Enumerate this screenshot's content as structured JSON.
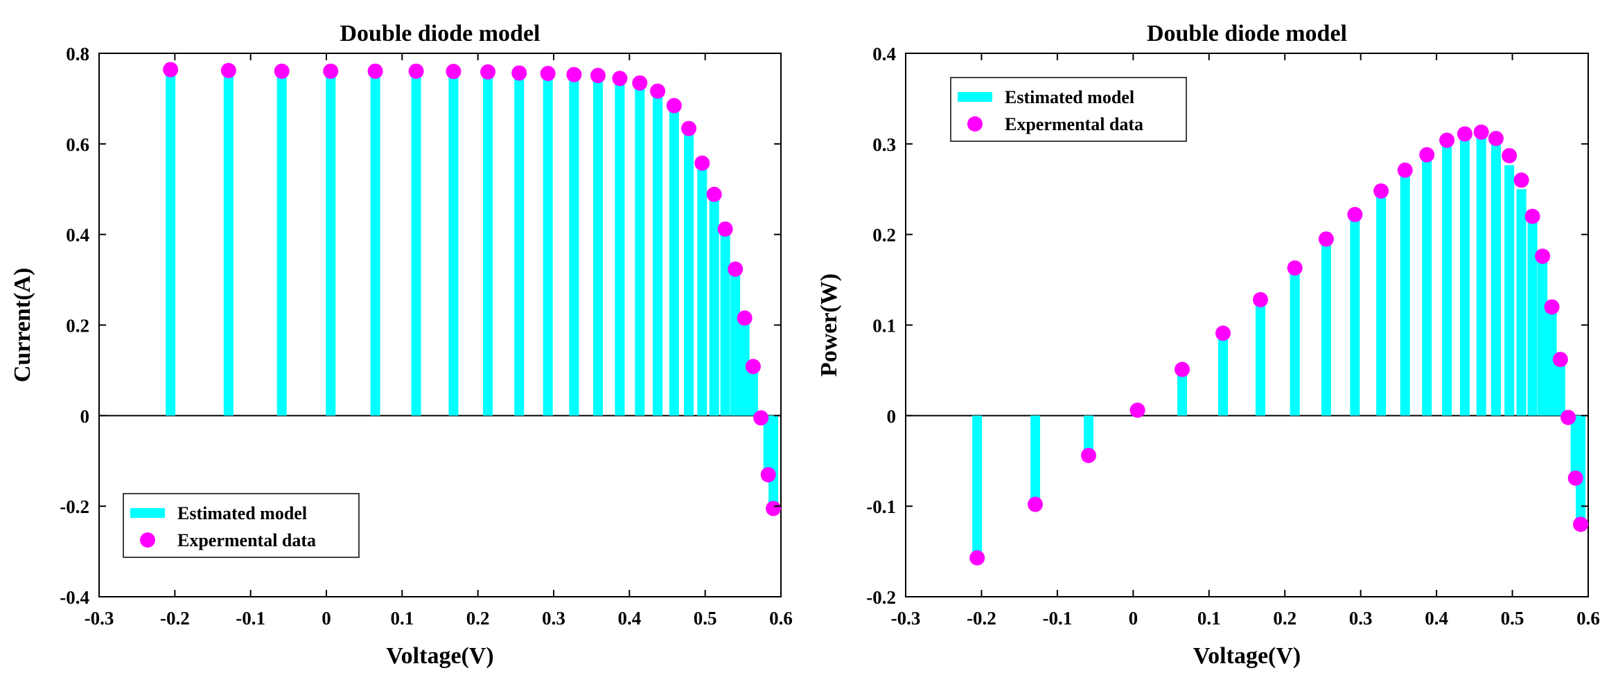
{
  "colors": {
    "stem": "#00ffff",
    "marker": "#ff00ff",
    "axis": "#000000"
  },
  "legend_labels": {
    "stem": "Estimated model",
    "marker": "Expermental data"
  },
  "chart_data": [
    {
      "type": "stem",
      "title": "Double diode model",
      "xlabel": "Voltage(V)",
      "ylabel": "Current(A)",
      "xlim": [
        -0.3,
        0.6
      ],
      "ylim": [
        -0.4,
        0.8
      ],
      "xticks": [
        -0.3,
        -0.2,
        -0.1,
        0,
        0.1,
        0.2,
        0.3,
        0.4,
        0.5,
        0.6
      ],
      "xtick_labels": [
        "-0.3",
        "-0.2",
        "-0.1",
        "0",
        "0.1",
        "0.2",
        "0.3",
        "0.4",
        "0.5",
        "0.6"
      ],
      "yticks": [
        -0.4,
        -0.2,
        0,
        0.2,
        0.4,
        0.6,
        0.8
      ],
      "ytick_labels": [
        "-0.4",
        "-0.2",
        "0",
        "0.2",
        "0.4",
        "0.6",
        "0.8"
      ],
      "legend_position": "bottom-left",
      "series": [
        {
          "name": "Estimated model",
          "kind": "stem",
          "x": [
            -0.2057,
            -0.1291,
            -0.0588,
            0.0057,
            0.0646,
            0.1185,
            0.1678,
            0.2132,
            0.2545,
            0.2924,
            0.3269,
            0.3585,
            0.3873,
            0.4137,
            0.4373,
            0.459,
            0.4784,
            0.496,
            0.5119,
            0.5265,
            0.5398,
            0.5521,
            0.5633,
            0.5736,
            0.5833,
            0.59
          ],
          "y": [
            0.764,
            0.762,
            0.7605,
            0.7605,
            0.7605,
            0.7605,
            0.76,
            0.759,
            0.7565,
            0.7555,
            0.753,
            0.751,
            0.7445,
            0.7345,
            0.7165,
            0.6845,
            0.634,
            0.5575,
            0.4885,
            0.412,
            0.3235,
            0.2155,
            0.1085,
            -0.005,
            -0.1305,
            -0.205
          ]
        },
        {
          "name": "Expermental data",
          "kind": "marker",
          "x": [
            -0.2057,
            -0.1291,
            -0.0588,
            0.0057,
            0.0646,
            0.1185,
            0.1678,
            0.2132,
            0.2545,
            0.2924,
            0.3269,
            0.3585,
            0.3873,
            0.4137,
            0.4373,
            0.459,
            0.4784,
            0.496,
            0.5119,
            0.5265,
            0.5398,
            0.5521,
            0.5633,
            0.5736,
            0.5833,
            0.59
          ],
          "y": [
            0.764,
            0.762,
            0.7605,
            0.7605,
            0.7605,
            0.7605,
            0.76,
            0.759,
            0.7565,
            0.7555,
            0.753,
            0.751,
            0.7445,
            0.7345,
            0.7165,
            0.6845,
            0.634,
            0.5575,
            0.4885,
            0.412,
            0.3235,
            0.2155,
            0.1085,
            -0.005,
            -0.1305,
            -0.205
          ]
        }
      ]
    },
    {
      "type": "stem",
      "title": "Double diode model",
      "xlabel": "Voltage(V)",
      "ylabel": "Power(W)",
      "xlim": [
        -0.3,
        0.6
      ],
      "ylim": [
        -0.2,
        0.4
      ],
      "xticks": [
        -0.3,
        -0.2,
        -0.1,
        0,
        0.1,
        0.2,
        0.3,
        0.4,
        0.5,
        0.6
      ],
      "xtick_labels": [
        "-0.3",
        "-0.2",
        "-0.1",
        "0",
        "0.1",
        "0.2",
        "0.3",
        "0.4",
        "0.5",
        "0.6"
      ],
      "yticks": [
        -0.2,
        -0.1,
        0,
        0.1,
        0.2,
        0.3,
        0.4
      ],
      "ytick_labels": [
        "-0.2",
        "-0.1",
        "0",
        "0.1",
        "0.2",
        "0.3",
        "0.4"
      ],
      "legend_position": "top-left",
      "series": [
        {
          "name": "Estimated model",
          "kind": "stem",
          "x": [
            -0.2057,
            -0.1291,
            -0.0588,
            0.0057,
            0.0646,
            0.1185,
            0.1678,
            0.2132,
            0.2545,
            0.2924,
            0.3269,
            0.3585,
            0.3873,
            0.4137,
            0.4373,
            0.459,
            0.4784,
            0.496,
            0.5119,
            0.5265,
            0.5398,
            0.5521,
            0.5633,
            0.5736,
            0.5833,
            0.59
          ],
          "y": [
            -0.157,
            -0.098,
            -0.045,
            0.004,
            0.049,
            0.09,
            0.1275,
            0.162,
            0.1925,
            0.221,
            0.246,
            0.2695,
            0.2885,
            0.304,
            0.3135,
            0.314,
            0.3035,
            0.2765,
            0.25,
            0.217,
            0.1745,
            0.119,
            0.061,
            -0.003,
            -0.0755,
            -0.121
          ]
        },
        {
          "name": "Expermental data",
          "kind": "marker",
          "x": [
            -0.2057,
            -0.1291,
            -0.0588,
            0.0057,
            0.0646,
            0.1185,
            0.1678,
            0.2132,
            0.2545,
            0.2924,
            0.3269,
            0.3585,
            0.3873,
            0.4137,
            0.4373,
            0.459,
            0.4784,
            0.496,
            0.5119,
            0.5265,
            0.5398,
            0.5521,
            0.5633,
            0.5736,
            0.5833,
            0.59
          ],
          "y": [
            -0.157,
            -0.098,
            -0.044,
            0.006,
            0.051,
            0.091,
            0.128,
            0.163,
            0.195,
            0.222,
            0.248,
            0.271,
            0.288,
            0.304,
            0.311,
            0.313,
            0.306,
            0.287,
            0.26,
            0.22,
            0.176,
            0.12,
            0.062,
            -0.002,
            -0.069,
            -0.12
          ]
        }
      ]
    }
  ]
}
